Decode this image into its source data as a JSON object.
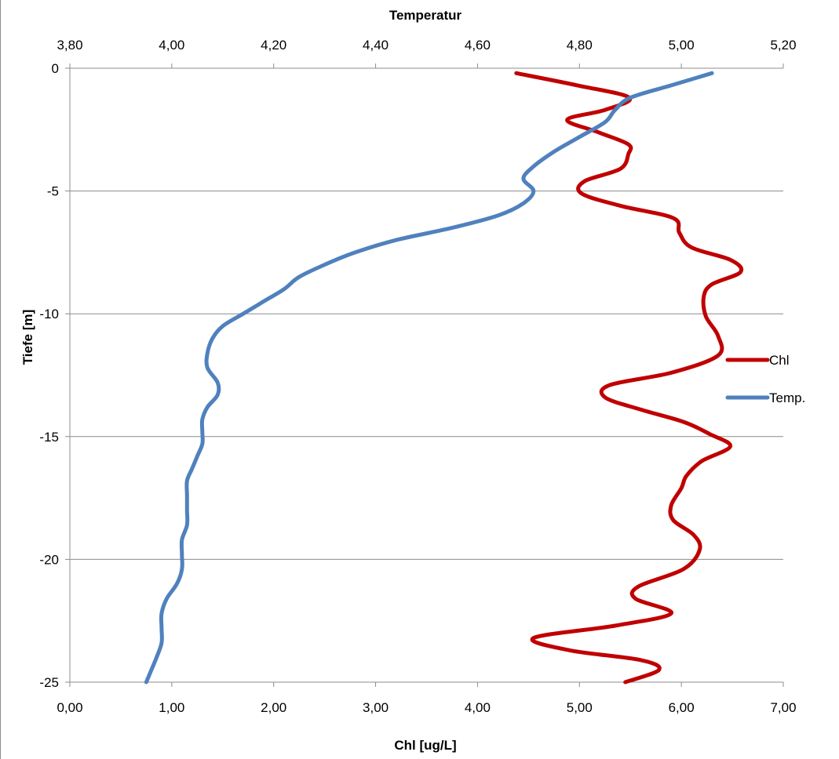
{
  "chart_data": {
    "type": "line",
    "orientation": "depth-profile",
    "top_axis": {
      "label": "Temperatur",
      "range": [
        3.8,
        5.2
      ],
      "ticks": [
        "3,80",
        "4,00",
        "4,20",
        "4,40",
        "4,60",
        "4,80",
        "5,00",
        "5,20"
      ]
    },
    "bottom_axis": {
      "label": "Chl [ug/L]",
      "range": [
        0,
        7
      ],
      "ticks": [
        "0,00",
        "1,00",
        "2,00",
        "3,00",
        "4,00",
        "5,00",
        "6,00",
        "7,00"
      ]
    },
    "y_axis": {
      "label": "Tiefe [m]",
      "range": [
        -25,
        0
      ],
      "ticks": [
        "0",
        "-5",
        "-10",
        "-15",
        "-20",
        "-25"
      ]
    },
    "grid": "horizontal",
    "legend_placement": "right",
    "series": [
      {
        "name": "Chl",
        "axis": "bottom",
        "color": "#c00000",
        "depth": [
          -0.2,
          -0.7,
          -1.2,
          -1.7,
          -2.1,
          -2.6,
          -3.1,
          -3.5,
          -4.1,
          -4.6,
          -5.1,
          -5.6,
          -6.1,
          -6.7,
          -7.3,
          -7.8,
          -8.3,
          -8.8,
          -9.3,
          -10.1,
          -10.9,
          -11.7,
          -12.4,
          -12.9,
          -13.4,
          -13.9,
          -14.4,
          -14.9,
          -15.4,
          -16.0,
          -16.6,
          -17.1,
          -17.8,
          -18.4,
          -19.0,
          -19.6,
          -20.4,
          -21.1,
          -21.6,
          -22.2,
          -22.7,
          -23.2,
          -23.7,
          -24.1,
          -24.5,
          -25.0
        ],
        "values": [
          4.38,
          4.98,
          5.49,
          5.25,
          4.88,
          5.18,
          5.48,
          5.48,
          5.4,
          5.05,
          5.02,
          5.4,
          5.92,
          5.98,
          6.1,
          6.48,
          6.58,
          6.3,
          6.22,
          6.24,
          6.36,
          6.36,
          5.9,
          5.3,
          5.25,
          5.6,
          6.02,
          6.28,
          6.48,
          6.2,
          6.05,
          6.0,
          5.9,
          5.92,
          6.12,
          6.18,
          6.02,
          5.58,
          5.55,
          5.9,
          5.35,
          4.55,
          4.9,
          5.6,
          5.78,
          5.45
        ]
      },
      {
        "name": "Temp.",
        "axis": "top",
        "color": "#4f81bd",
        "depth": [
          -0.2,
          -0.7,
          -1.2,
          -1.7,
          -2.2,
          -2.8,
          -3.4,
          -4.0,
          -4.5,
          -5.0,
          -5.5,
          -6.0,
          -6.5,
          -7.0,
          -7.5,
          -8.0,
          -8.5,
          -9.0,
          -9.5,
          -10.0,
          -10.5,
          -11.0,
          -11.6,
          -12.2,
          -12.8,
          -13.3,
          -13.8,
          -14.3,
          -14.8,
          -15.3,
          -15.8,
          -16.3,
          -16.8,
          -17.4,
          -18.0,
          -18.6,
          -19.2,
          -19.8,
          -20.4,
          -21.0,
          -21.6,
          -22.2,
          -22.8,
          -23.4,
          -24.0,
          -24.5,
          -25.0
        ],
        "values": [
          5.06,
          4.98,
          4.9,
          4.87,
          4.85,
          4.8,
          4.75,
          4.71,
          4.69,
          4.71,
          4.69,
          4.64,
          4.55,
          4.44,
          4.36,
          4.3,
          4.25,
          4.22,
          4.18,
          4.14,
          4.1,
          4.08,
          4.07,
          4.07,
          4.09,
          4.09,
          4.07,
          4.06,
          4.06,
          4.06,
          4.05,
          4.04,
          4.03,
          4.03,
          4.03,
          4.03,
          4.02,
          4.02,
          4.02,
          4.01,
          3.99,
          3.98,
          3.98,
          3.98,
          3.97,
          3.96,
          3.95
        ]
      }
    ]
  }
}
